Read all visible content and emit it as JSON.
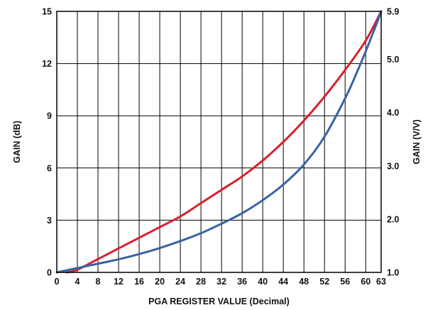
{
  "chart_data": {
    "type": "line",
    "title": "",
    "xlabel": "PGA REGISTER VALUE (Decimal)",
    "ylabel_left": "GAIN (dB)",
    "ylabel_right": "GAIN (V/V)",
    "xlim": [
      0,
      63
    ],
    "ylim_left": [
      0,
      15
    ],
    "ylim_right": [
      1.0,
      5.9
    ],
    "x_ticks": [
      "0",
      "4",
      "8",
      "12",
      "16",
      "20",
      "24",
      "28",
      "32",
      "36",
      "40",
      "44",
      "48",
      "52",
      "56",
      "60",
      "63"
    ],
    "y_left_ticks": [
      "0",
      "3",
      "6",
      "9",
      "12",
      "15"
    ],
    "y_right_ticks": [
      "1.0",
      "2.0",
      "3.0",
      "4.0",
      "5.0",
      "5.9"
    ],
    "grid": true,
    "colors": {
      "red_series": "#d7202b",
      "blue_series": "#3a62a3",
      "grid": "#000000"
    },
    "series": [
      {
        "axis": "right",
        "color": "#d7202b",
        "x": [
          2,
          4,
          8,
          12,
          16,
          20,
          24,
          28,
          32,
          36,
          40,
          44,
          48,
          52,
          56,
          60,
          63
        ],
        "y": [
          1.0,
          1.05,
          1.25,
          1.45,
          1.65,
          1.85,
          2.05,
          2.3,
          2.55,
          2.8,
          3.1,
          3.45,
          3.85,
          4.3,
          4.8,
          5.35,
          5.9
        ]
      },
      {
        "axis": "left",
        "color": "#3a62a3",
        "x": [
          0,
          4,
          8,
          12,
          16,
          20,
          24,
          28,
          32,
          36,
          40,
          44,
          48,
          52,
          56,
          58,
          60,
          62,
          63
        ],
        "y": [
          0,
          0.25,
          0.5,
          0.75,
          1.05,
          1.4,
          1.8,
          2.25,
          2.8,
          3.4,
          4.15,
          5.05,
          6.2,
          7.8,
          10.0,
          11.3,
          12.7,
          14.2,
          15.0
        ]
      }
    ]
  }
}
